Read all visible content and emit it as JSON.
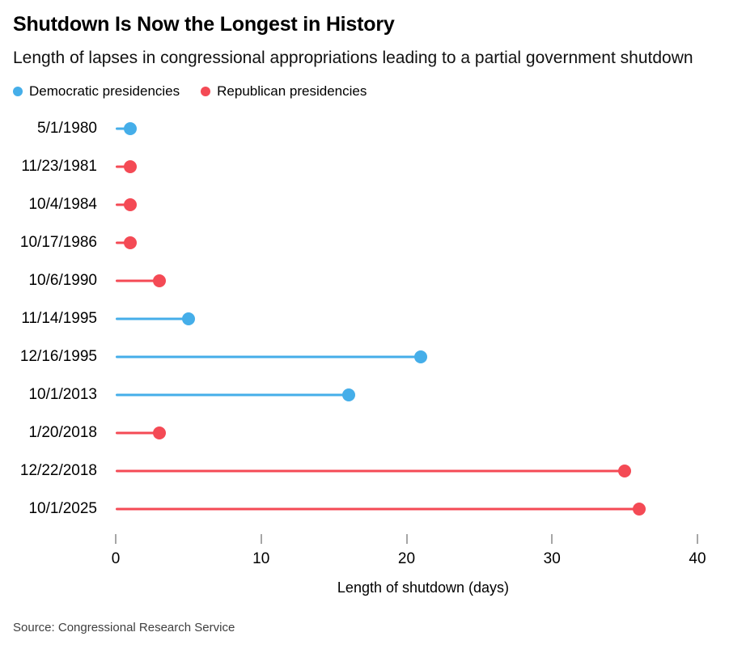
{
  "header": {
    "title": "Shutdown Is Now the Longest in History",
    "subtitle": "Length of lapses in congressional appropriations leading to a partial government shutdown"
  },
  "legend": {
    "items": [
      {
        "label": "Democratic presidencies",
        "party": "democratic"
      },
      {
        "label": "Republican presidencies",
        "party": "republican"
      }
    ]
  },
  "colors": {
    "democratic": "#45AEE9",
    "republican": "#F44A55"
  },
  "chart_data": {
    "type": "bar",
    "style": "lollipop",
    "orientation": "horizontal",
    "title": "Shutdown Is Now the Longest in History",
    "subtitle": "Length of lapses in congressional appropriations leading to a partial government shutdown",
    "categories": [
      "5/1/1980",
      "11/23/1981",
      "10/4/1984",
      "10/17/1986",
      "10/6/1990",
      "11/14/1995",
      "12/16/1995",
      "10/1/2013",
      "1/20/2018",
      "12/22/2018",
      "10/1/2025"
    ],
    "values": [
      1,
      1,
      1,
      1,
      3,
      5,
      21,
      16,
      3,
      35,
      36
    ],
    "parties": [
      "democratic",
      "republican",
      "republican",
      "republican",
      "republican",
      "democratic",
      "democratic",
      "democratic",
      "republican",
      "republican",
      "republican"
    ],
    "xlabel": "Length of shutdown (days)",
    "ylabel": "",
    "xlim": [
      0,
      40
    ],
    "xticks": [
      0,
      10,
      20,
      30,
      40
    ],
    "grid": false,
    "legend_position": "top"
  },
  "footer": {
    "source": "Source: Congressional Research Service"
  }
}
